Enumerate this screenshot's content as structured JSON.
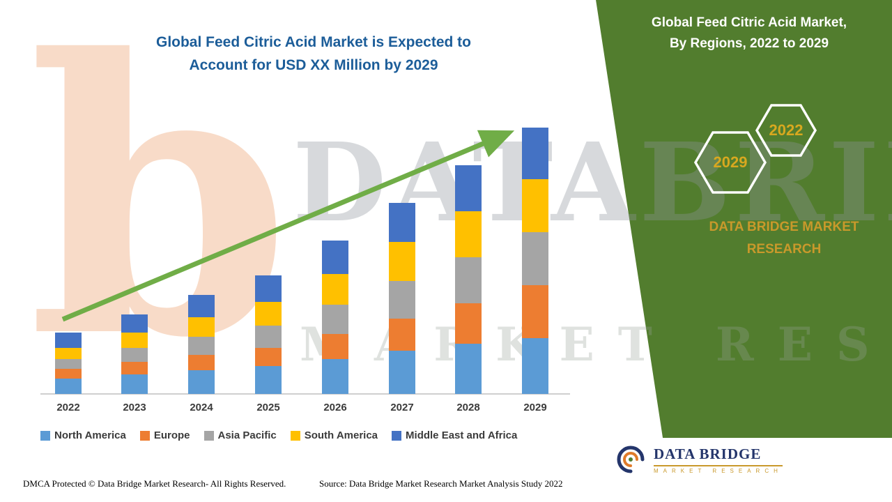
{
  "chart": {
    "title_line1": "Global Feed Citric Acid Market is Expected to",
    "title_line2": "Account for USD XX Million by 2029"
  },
  "side_panel": {
    "title_line1": "Global Feed Citric Acid Market,",
    "title_line2": "By Regions, 2022 to 2029",
    "badge_2029": "2029",
    "badge_2022": "2022",
    "brand_text": "DATA BRIDGE MARKET RESEARCH",
    "green_color": "#527d2e",
    "gold_color": "#c9992b"
  },
  "watermark": {
    "letter_b": "b",
    "text_top": "DATABRIDGE",
    "text_bottom": "MARKET RESEARCH"
  },
  "footer": {
    "dmca": "DMCA Protected © Data Bridge Market Research- All Rights Reserved.",
    "source": "Source: Data Bridge Market Research Market Analysis Study 2022",
    "logo_title": "DATA BRIDGE",
    "logo_subtitle": "MARKET RESEARCH"
  },
  "chart_data": {
    "type": "bar",
    "stacked": true,
    "title": "Global Feed Citric Acid Market is Expected to Account for USD XX Million by 2029",
    "categories": [
      "2022",
      "2023",
      "2024",
      "2025",
      "2026",
      "2027",
      "2028",
      "2029"
    ],
    "series": [
      {
        "name": "North America",
        "color": "#5B9BD5",
        "values": [
          11,
          14,
          17,
          20,
          25,
          31,
          36,
          40
        ]
      },
      {
        "name": "Europe",
        "color": "#ED7D31",
        "values": [
          7,
          9,
          11,
          13,
          18,
          23,
          29,
          38
        ]
      },
      {
        "name": "Asia Pacific",
        "color": "#A5A5A5",
        "values": [
          7,
          10,
          13,
          16,
          21,
          27,
          33,
          38
        ]
      },
      {
        "name": "South America",
        "color": "#FFC000",
        "values": [
          8,
          11,
          14,
          17,
          22,
          28,
          33,
          38
        ]
      },
      {
        "name": "Middle East and Africa",
        "color": "#4472C4",
        "values": [
          11,
          13,
          16,
          19,
          24,
          28,
          33,
          37
        ]
      }
    ],
    "xlabel": "",
    "ylabel": "",
    "y_axis_visible": false,
    "values_note": "relative units estimated from bar heights; no y-axis shown (USD XX Million)",
    "grid": false,
    "legend_position": "bottom",
    "trend_arrow": true,
    "trend_arrow_color": "#70ad47"
  }
}
